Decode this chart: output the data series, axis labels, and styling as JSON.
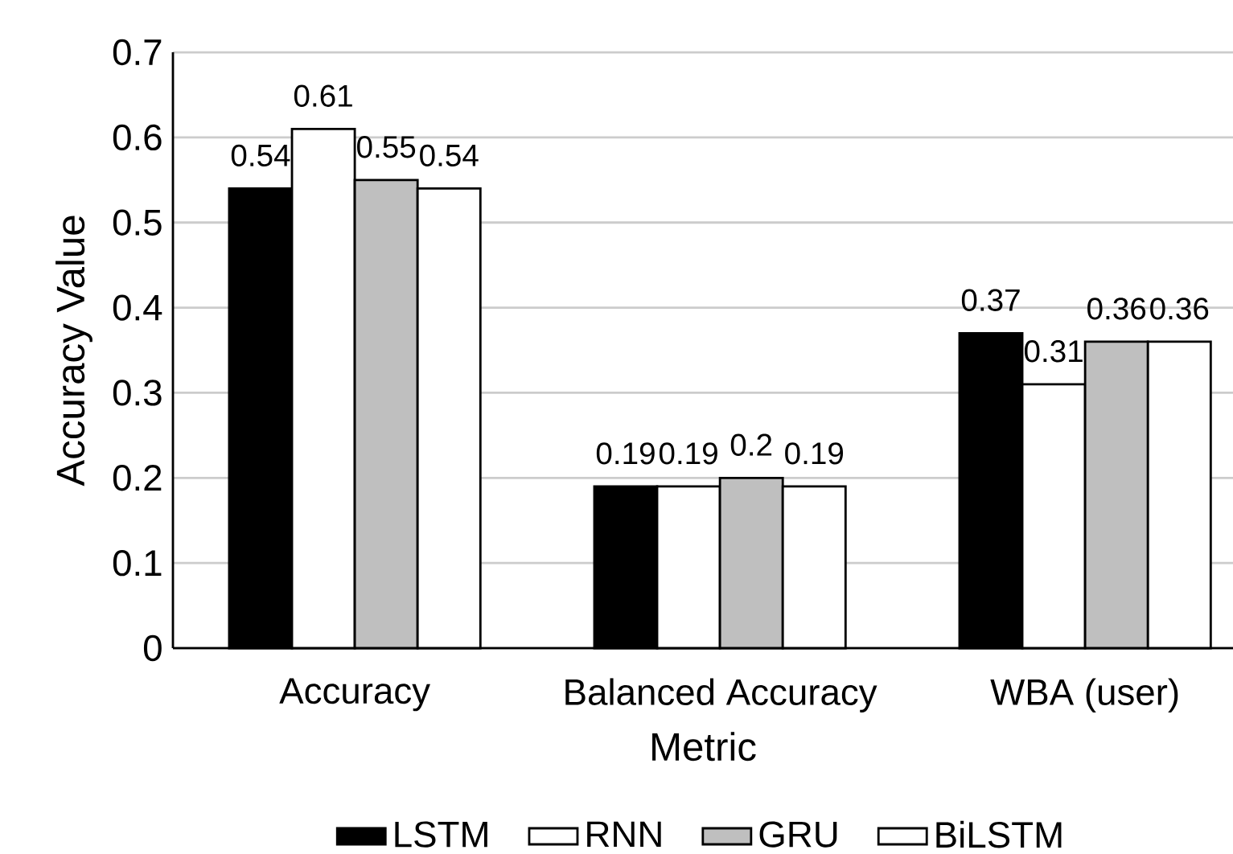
{
  "chart_data": {
    "type": "bar",
    "xlabel": "Metric",
    "ylabel": "Accuracy Value",
    "categories": [
      "Accuracy",
      "Balanced Accuracy",
      "WBA (user)"
    ],
    "series": [
      {
        "name": "LSTM",
        "color": "#000000",
        "values": [
          0.54,
          0.19,
          0.37
        ]
      },
      {
        "name": "RNN",
        "color": "#ffffff",
        "values": [
          0.61,
          0.19,
          0.31
        ]
      },
      {
        "name": "GRU",
        "color": "#bfbfbf",
        "values": [
          0.55,
          0.2,
          0.36
        ]
      },
      {
        "name": "BiLSTM",
        "color": "#ffffff",
        "values": [
          0.54,
          0.19,
          0.36
        ]
      }
    ],
    "ylim": [
      0,
      0.7
    ],
    "yticks": [
      0,
      0.1,
      0.2,
      0.3,
      0.4,
      0.5,
      0.6,
      0.7
    ],
    "grid": "y",
    "legend": "bottom",
    "data_labels": true
  }
}
